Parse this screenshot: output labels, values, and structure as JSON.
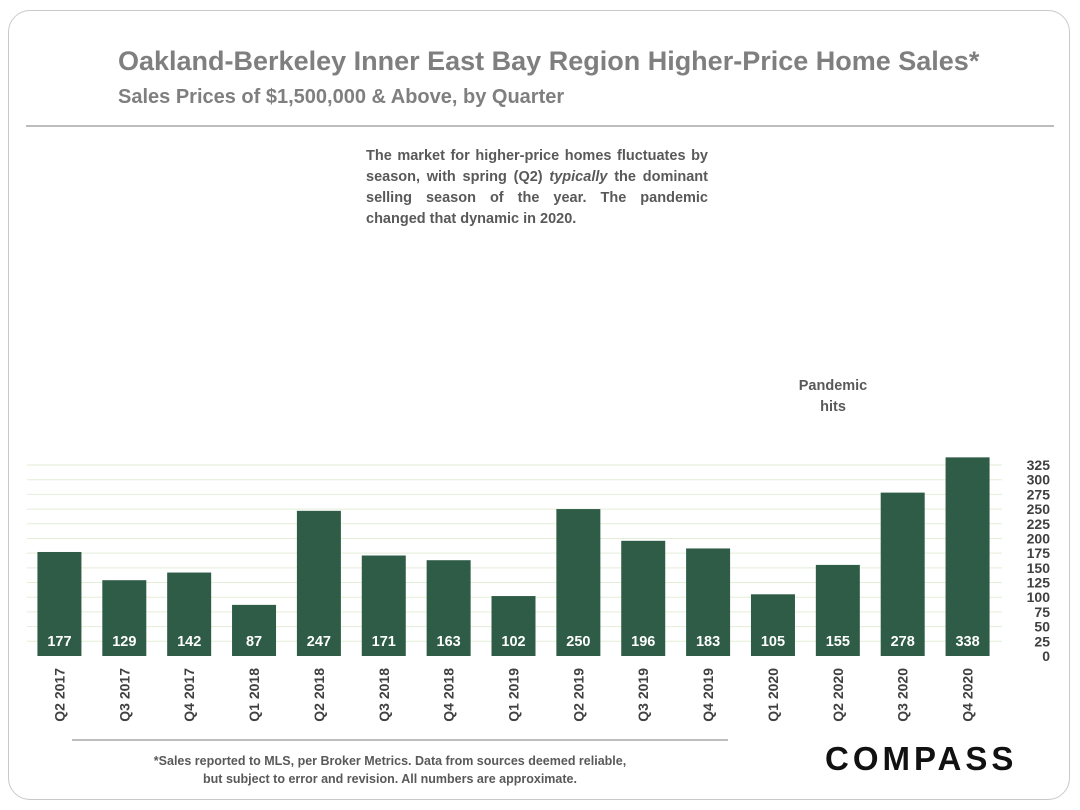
{
  "header": {
    "title": "Oakland-Berkeley Inner East Bay Region Higher-Price Home Sales*",
    "subtitle": "Sales Prices of $1,500,000 & Above, by Quarter"
  },
  "annotations": {
    "market_note_1": "The market for higher-price homes fluctuates by season, with spring (Q2) ",
    "market_note_em": "typically",
    "market_note_2": " the dominant selling season of the year.  The pandemic changed that dynamic in 2020.",
    "pandemic_line1": "Pandemic",
    "pandemic_line2": "hits"
  },
  "footer": {
    "footnote_line1": "*Sales reported to MLS, per Broker Metrics. Data from sources deemed reliable,",
    "footnote_line2": "but subject to error and revision. All numbers are approximate.",
    "logo": "COMPASS"
  },
  "colors": {
    "bar": "#2f5c46",
    "label_text": "#ffffff",
    "axis_text": "#404040",
    "grid": "#e3eed9"
  },
  "chart_data": {
    "type": "bar",
    "categories": [
      "Q2 2017",
      "Q3 2017",
      "Q4 2017",
      "Q1 2018",
      "Q2 2018",
      "Q3 2018",
      "Q4 2018",
      "Q1 2019",
      "Q2 2019",
      "Q3 2019",
      "Q4 2019",
      "Q1 2020",
      "Q2 2020",
      "Q3 2020",
      "Q4 2020"
    ],
    "values": [
      177,
      129,
      142,
      87,
      247,
      171,
      163,
      102,
      250,
      196,
      183,
      105,
      155,
      278,
      338
    ],
    "title": "Oakland-Berkeley Inner East Bay Region Higher-Price Home Sales*",
    "subtitle": "Sales Prices of $1,500,000 & Above, by Quarter",
    "ylim": [
      0,
      340
    ],
    "yticks": [
      0,
      25,
      50,
      75,
      100,
      125,
      150,
      175,
      200,
      225,
      250,
      275,
      300,
      325
    ],
    "y_axis_side": "right",
    "grid": true,
    "data_labels": true,
    "legend": "none"
  }
}
